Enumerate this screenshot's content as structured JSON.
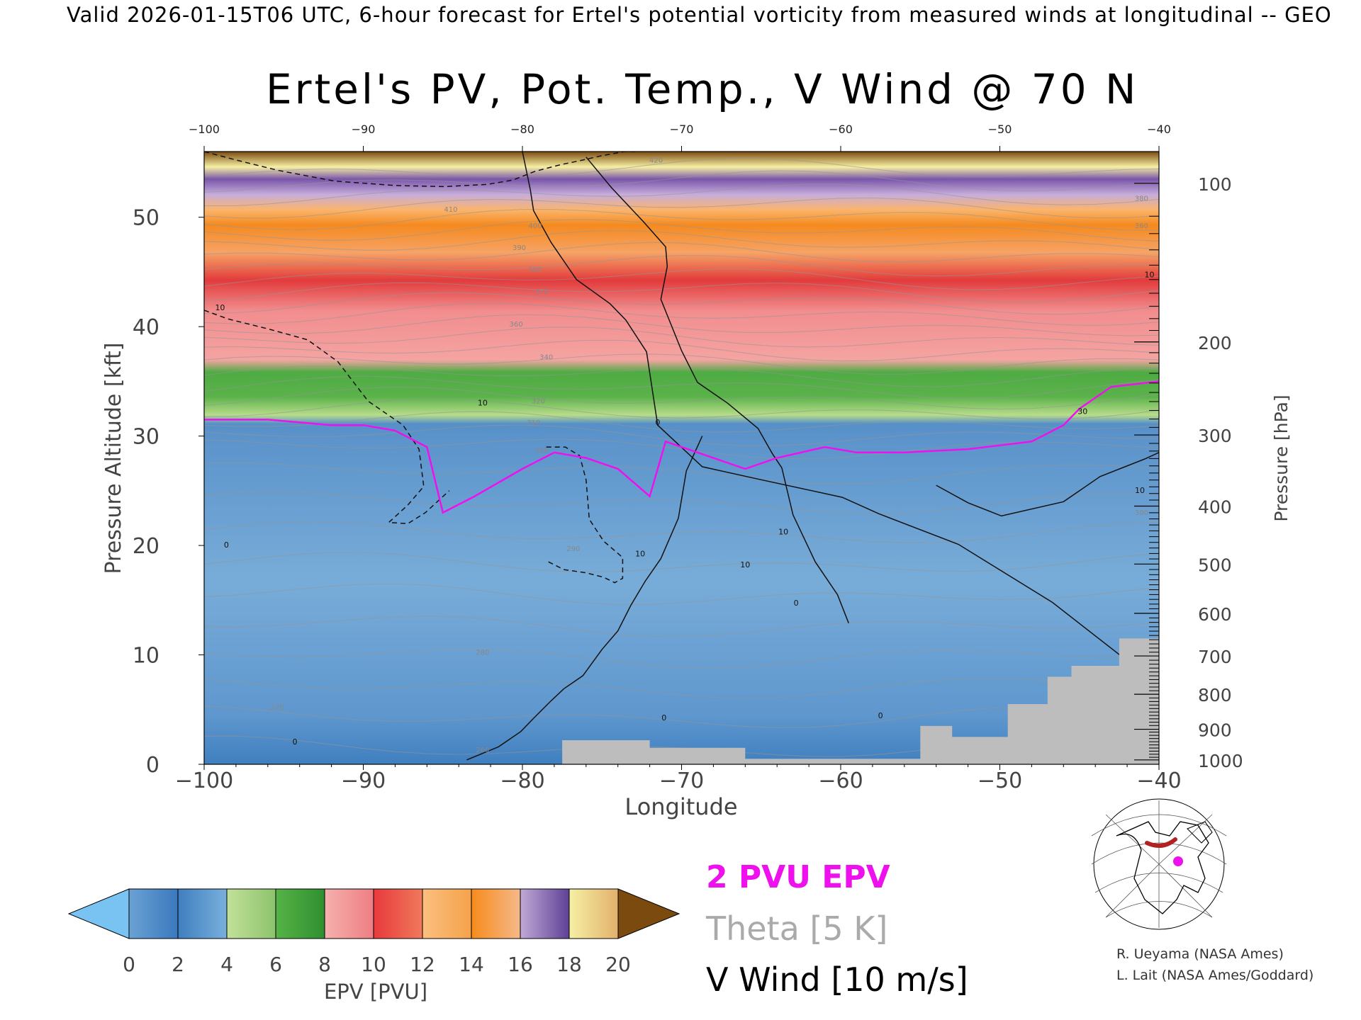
{
  "header": "Valid 2026-01-15T06 UTC, 6-hour forecast for Ertel's potential vorticity from measured winds at longitudinal -- GEO",
  "chart_data": {
    "type": "heatmap",
    "title": "Ertel's PV, Pot. Temp., V Wind @ 70 N",
    "xlabel": "Longitude",
    "ylabel": "Pressure Altitude [kft]",
    "ylabel_right": "Pressure [hPa]",
    "xlim": [
      -100,
      -40
    ],
    "ylim": [
      0,
      56
    ],
    "x_ticks": [
      -100,
      -90,
      -80,
      -70,
      -60,
      -50,
      -40
    ],
    "x_tick_labels": [
      "−100",
      "−90",
      "−80",
      "−70",
      "−60",
      "−50",
      "−40"
    ],
    "top_tick_labels": [
      "−100",
      "−90",
      "−80",
      "−70",
      "−60",
      "−50",
      "−40"
    ],
    "y_ticks": [
      0,
      10,
      20,
      30,
      40,
      50
    ],
    "pressure_ticks": [
      {
        "hPa": 100,
        "label": "100",
        "kft": 53.1
      },
      {
        "hPa": 200,
        "label": "200",
        "kft": 38.6
      },
      {
        "hPa": 300,
        "label": "300",
        "kft": 30.1
      },
      {
        "hPa": 400,
        "label": "400",
        "kft": 23.6
      },
      {
        "hPa": 500,
        "label": "500",
        "kft": 18.3
      },
      {
        "hPa": 600,
        "label": "600",
        "kft": 13.8
      },
      {
        "hPa": 700,
        "label": "700",
        "kft": 9.9
      },
      {
        "hPa": 800,
        "label": "800",
        "kft": 6.4
      },
      {
        "hPa": 900,
        "label": "900",
        "kft": 3.2
      },
      {
        "hPa": 1000,
        "label": "1000",
        "kft": 0.4
      }
    ],
    "epv_layers_kft": [
      {
        "epv_range": "0-2 PVU",
        "from": 0,
        "to": 31
      },
      {
        "epv_range": "4-6 PVU",
        "from": 31,
        "to": 36
      },
      {
        "epv_range": "8-10 PVU",
        "from": 36,
        "to": 47
      },
      {
        "epv_range": "12-14 PVU",
        "from": 47,
        "to": 51
      },
      {
        "epv_range": "14-16 PVU",
        "from": 51,
        "to": 54
      },
      {
        "epv_range": "16-20 PVU",
        "from": 54,
        "to": 56
      }
    ],
    "pv2_tropopause": {
      "name": "2 PVU EPV",
      "lon": [
        -100,
        -96,
        -92,
        -90,
        -88,
        -86,
        -85,
        -83,
        -80,
        -78,
        -76,
        -74,
        -72,
        -71,
        -69,
        -66,
        -64,
        -61,
        -59,
        -56,
        -52,
        -48,
        -46,
        -45,
        -43,
        -40
      ],
      "kft": [
        31.5,
        31.5,
        31.0,
        31.0,
        30.5,
        29.0,
        23.0,
        24.5,
        27.0,
        28.5,
        28.0,
        27.0,
        24.5,
        29.5,
        28.5,
        27.0,
        28.0,
        29.0,
        28.5,
        28.5,
        28.8,
        29.5,
        31.0,
        32.5,
        34.5,
        35.0
      ]
    },
    "terrain": {
      "lon": [
        -77.5,
        -77.5,
        -72,
        -72,
        -66,
        -66,
        -55,
        -55,
        -53,
        -53,
        -49.5,
        -49.5,
        -47,
        -47,
        -45.5,
        -45.5,
        -42.5,
        -42.5,
        -40
      ],
      "kft": [
        0,
        2.2,
        2.2,
        1.5,
        1.5,
        0.5,
        0.5,
        3.5,
        3.5,
        2.5,
        2.5,
        5.5,
        5.5,
        8,
        8,
        9,
        9,
        11.5,
        11.5
      ]
    },
    "wind_contours": [
      {
        "label": "0",
        "style": "solid",
        "lon": [
          -80,
          -79.5,
          -79.3,
          -78.2,
          -76.6,
          -74.5,
          -73.5,
          -72.2,
          -71.5,
          -68.7,
          -65.3,
          -59.9,
          -57.6,
          -52.6,
          -46.7,
          -40
        ],
        "kft": [
          56,
          52.5,
          50.6,
          47.7,
          44.3,
          42.1,
          40.6,
          37.7,
          31.0,
          27.2,
          26.1,
          24.4,
          22.9,
          20.1,
          14.8,
          7.2
        ]
      },
      {
        "label": "0",
        "style": "solid",
        "lon": [
          -76,
          -74.4,
          -72.4,
          -71.0,
          -70.9,
          -71.3,
          -70.0,
          -69.0,
          -67.1,
          -65.2,
          -64.3,
          -63.7,
          -63.0,
          -61.6,
          -60.2,
          -59.5
        ],
        "kft": [
          55.5,
          52.7,
          49.6,
          47.3,
          45.5,
          42.5,
          37.8,
          34.9,
          33.0,
          30.7,
          28.4,
          27.1,
          22.8,
          18.5,
          15.5,
          12.9
        ]
      },
      {
        "label": "10",
        "style": "solid",
        "lon": [
          -68.7,
          -69.7,
          -70.2,
          -71.3,
          -72.3,
          -73.2,
          -74.0,
          -75.0,
          -76.2,
          -77.4,
          -78.2,
          -79.3,
          -80.1,
          -81.5,
          -83.5
        ],
        "kft": [
          30.0,
          26.8,
          22.5,
          18.8,
          16.7,
          14.5,
          12.2,
          10.5,
          8.1,
          6.9,
          5.8,
          4.2,
          3.0,
          1.6,
          0.4
        ]
      },
      {
        "label": "10",
        "style": "solid",
        "lon": [
          -54.0,
          -52.0,
          -49.9,
          -46.0,
          -43.7,
          -40.9,
          -40.0
        ],
        "kft": [
          25.5,
          23.9,
          22.7,
          24.0,
          26.3,
          27.9,
          28.5
        ]
      },
      {
        "label": "-10",
        "style": "dashed",
        "lon": [
          -100,
          -98.5,
          -96.0,
          -93.5,
          -91.6,
          -89.7,
          -87.5,
          -86.5,
          -86.2,
          -87.2,
          -88.1,
          -88.4,
          -87.2,
          -86.1,
          -84.6
        ],
        "kft": [
          41.5,
          40.7,
          39.8,
          38.8,
          36.8,
          33.2,
          31.0,
          28.8,
          25.4,
          23.7,
          22.5,
          22.1,
          22.0,
          23.0,
          25.0
        ]
      },
      {
        "label": "-10",
        "style": "dashed",
        "lon": [
          -100,
          -97.9,
          -95.4,
          -91.8,
          -88.0,
          -84.9,
          -82.2,
          -80.6,
          -79.2,
          -77.6,
          -76.3,
          -75.1,
          -73.6,
          -72.9
        ],
        "kft": [
          56,
          55.2,
          54.3,
          53.3,
          52.9,
          52.8,
          53.0,
          53.4,
          54.2,
          54.8,
          55.2,
          55.6,
          56.0,
          56.0
        ]
      },
      {
        "label": "-10",
        "style": "dashed",
        "lon": [
          -78.5,
          -77.3,
          -76.4,
          -76.0,
          -75.8,
          -74.9,
          -73.7,
          -73.7,
          -74.2,
          -74.9,
          -76.0,
          -77.4,
          -78.5
        ],
        "kft": [
          29.0,
          29.0,
          28.2,
          26.0,
          22.4,
          20.4,
          18.9,
          17.0,
          16.6,
          17.1,
          17.5,
          17.8,
          18.6
        ]
      }
    ],
    "contour_labels_kft": [
      {
        "text": "10",
        "lon": -82.5,
        "kft": 32.8
      },
      {
        "text": "10",
        "lon": -72.6,
        "kft": 19.0
      },
      {
        "text": "10",
        "lon": -63.6,
        "kft": 21.0
      },
      {
        "text": "10",
        "lon": -66.0,
        "kft": 18.0
      },
      {
        "text": "10",
        "lon": -99.0,
        "kft": 41.5
      },
      {
        "text": "10",
        "lon": -40.6,
        "kft": 44.5
      },
      {
        "text": "10",
        "lon": -41.2,
        "kft": 24.8
      },
      {
        "text": "0",
        "lon": -71.5,
        "kft": 31.0
      },
      {
        "text": "0",
        "lon": -98.6,
        "kft": 19.8
      },
      {
        "text": "0",
        "lon": -62.8,
        "kft": 14.5
      },
      {
        "text": "0",
        "lon": -71.1,
        "kft": 4.0
      },
      {
        "text": "0",
        "lon": -57.5,
        "kft": 4.2
      },
      {
        "text": "0",
        "lon": -94.3,
        "kft": 1.8
      },
      {
        "text": "30",
        "lon": -44.8,
        "kft": 32.0
      }
    ],
    "theta_labels": [
      {
        "text": "410",
        "lon": -84.5,
        "kft": 50.5
      },
      {
        "text": "400",
        "lon": -79.2,
        "kft": 49.0
      },
      {
        "text": "390",
        "lon": -80.2,
        "kft": 47.0
      },
      {
        "text": "380",
        "lon": -79.2,
        "kft": 45.0
      },
      {
        "text": "370",
        "lon": -78.8,
        "kft": 43.0
      },
      {
        "text": "360",
        "lon": -80.4,
        "kft": 40.0
      },
      {
        "text": "340",
        "lon": -78.5,
        "kft": 37.0
      },
      {
        "text": "320",
        "lon": -79.0,
        "kft": 33.0
      },
      {
        "text": "310",
        "lon": -79.3,
        "kft": 31.0
      },
      {
        "text": "300",
        "lon": -78.8,
        "kft": 28.5
      },
      {
        "text": "290",
        "lon": -76.8,
        "kft": 19.5
      },
      {
        "text": "280",
        "lon": -82.5,
        "kft": 10.0
      },
      {
        "text": "270",
        "lon": -95.4,
        "kft": 5.0
      },
      {
        "text": "260",
        "lon": -82.5,
        "kft": 1.1
      },
      {
        "text": "420",
        "lon": -71.6,
        "kft": 55.0
      },
      {
        "text": "380",
        "lon": -41.1,
        "kft": 51.5
      },
      {
        "text": "360",
        "lon": -41.1,
        "kft": 49.0
      },
      {
        "text": "300",
        "lon": -41.1,
        "kft": 22.8
      }
    ],
    "colorbar": {
      "label": "EPV [PVU]",
      "tick_labels": [
        "0",
        "2",
        "4",
        "6",
        "8",
        "10",
        "12",
        "14",
        "16",
        "18",
        "20"
      ],
      "colors": [
        "#4a82c2",
        "#6aa2d4",
        "#9ec9e6",
        "#b6dc8d",
        "#56b347",
        "#e7a89f",
        "#de3a3d",
        "#f8b072",
        "#f68b1d",
        "#c0a9d6",
        "#6a4a9c",
        "#f6f0a4",
        "#7b4a0f"
      ],
      "under_color": "#79c3f2",
      "over_color": "#7b4a0f"
    },
    "legend": [
      {
        "label": "2 PVU EPV",
        "color": "#ee11ee"
      },
      {
        "label": "Theta [5 K]",
        "color": "#aaaaaa"
      },
      {
        "label": "V Wind [10 m/s]",
        "color": "#000000"
      }
    ]
  },
  "credits": {
    "line1": "R. Ueyama (NASA Ames)",
    "line2": "L. Lait (NASA Ames/Goddard)"
  },
  "inset_map": {
    "point_color": "#ee11ee",
    "section_color": "#b22222"
  }
}
